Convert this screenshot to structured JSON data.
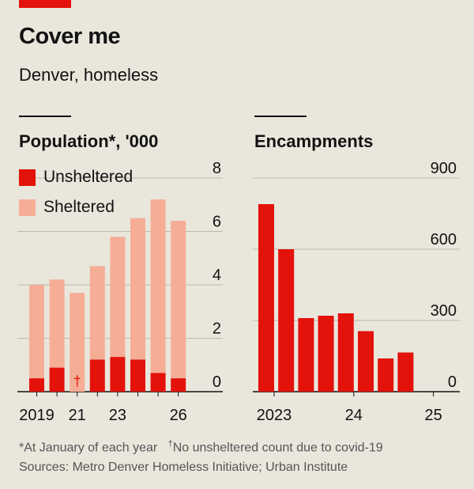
{
  "header": {
    "title": "Cover me",
    "subtitle": "Denver, homeless"
  },
  "colors": {
    "accent": "#e3120b",
    "unsheltered": "#e3120b",
    "sheltered": "#f5ae95",
    "encampments": "#e3120b"
  },
  "chart_data": [
    {
      "type": "bar",
      "title": "Population*, '000",
      "stacked": true,
      "categories": [
        "2019",
        "2020",
        "2021",
        "2022",
        "2023",
        "2024",
        "2025",
        "2026"
      ],
      "x_tick_labels": [
        "2019",
        "",
        "21",
        "",
        "23",
        "",
        "",
        "26"
      ],
      "series": [
        {
          "name": "Unsheltered",
          "values": [
            0.5,
            0.9,
            null,
            1.2,
            1.3,
            1.2,
            0.7,
            0.5
          ]
        },
        {
          "name": "Sheltered",
          "values": [
            3.5,
            3.3,
            3.7,
            3.5,
            4.5,
            5.3,
            6.5,
            5.9
          ]
        }
      ],
      "ylim": [
        0,
        8
      ],
      "y_ticks": [
        0,
        2,
        4,
        6,
        8
      ],
      "y_tick_labels": [
        "0",
        "2",
        "4",
        "6",
        "8"
      ],
      "annotations": [
        {
          "category": "2021",
          "text": "†"
        }
      ],
      "legend": "top-left",
      "grid": true
    },
    {
      "type": "bar",
      "title": "Encampments",
      "categories": [
        "2023 Q1",
        "2023 Q2",
        "2023 Q3",
        "2023 Q4",
        "2024 Q1",
        "2024 Q2",
        "2024 Q3",
        "2024 Q4",
        "2025 Q1"
      ],
      "x_tick_labels": [
        "2023",
        "",
        "",
        "",
        "24",
        "",
        "",
        "",
        "25"
      ],
      "values": [
        790,
        600,
        310,
        320,
        330,
        255,
        140,
        165,
        null
      ],
      "ylim": [
        0,
        900
      ],
      "y_ticks": [
        0,
        300,
        600,
        900
      ],
      "y_tick_labels": [
        "0",
        "300",
        "600",
        "900"
      ],
      "grid": true
    }
  ],
  "footnotes": {
    "line1_a": "*At January of each year",
    "line1_dagger": "†",
    "line1_b": "No unsheltered count due to covid-19",
    "sources": "Sources: Metro Denver Homeless Initiative; Urban Institute"
  }
}
